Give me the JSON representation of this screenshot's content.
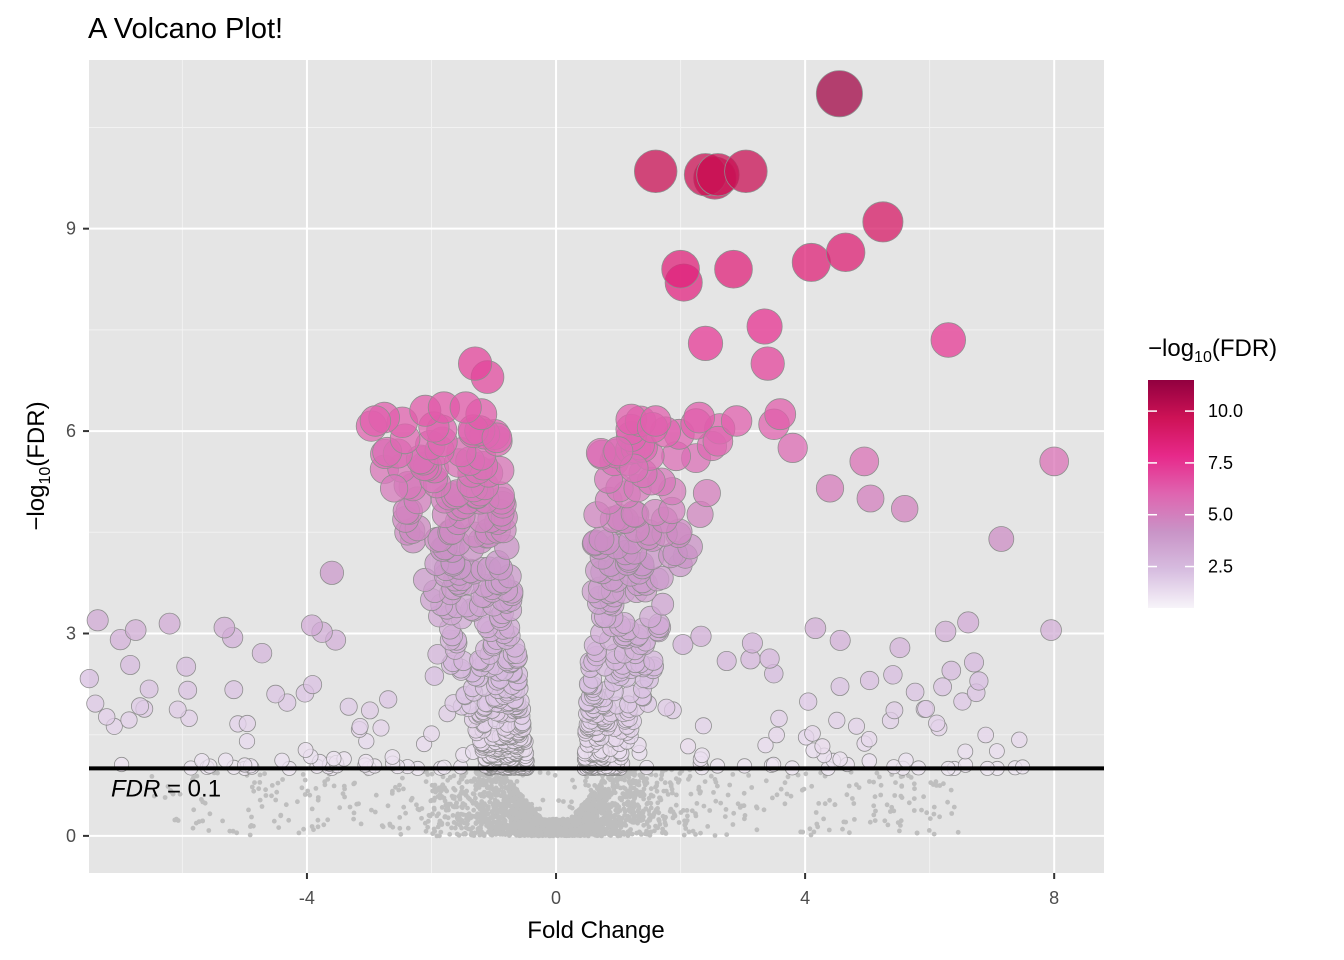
{
  "chart_data": {
    "type": "scatter",
    "title": "A Volcano Plot!",
    "xlabel": "Fold Change",
    "ylabel": {
      "prefix": "−log",
      "sub": "10",
      "suffix": "(FDR)"
    },
    "xlim": [
      -7.5,
      8.8
    ],
    "ylim": [
      -0.55,
      11.5
    ],
    "x_ticks": [
      -4,
      0,
      4,
      8
    ],
    "x_tick_labels": [
      "-4",
      "0",
      "4",
      "8"
    ],
    "y_ticks": [
      0,
      3,
      6,
      9
    ],
    "y_tick_labels": [
      "0",
      "3",
      "6",
      "9"
    ],
    "grid": true,
    "background": "#e5e5e5",
    "threshold": {
      "y": 1.0,
      "label_var": "FDR",
      "label_rest": " = 0.1"
    },
    "legend": {
      "position": "right",
      "title": {
        "prefix": "−log",
        "sub": "10",
        "suffix": "(FDR)"
      },
      "range": [
        0.5,
        11.5
      ],
      "ticks": [
        2.5,
        5.0,
        7.5,
        10.0
      ],
      "tick_labels": [
        "2.5",
        "5.0",
        "7.5",
        "10.0"
      ],
      "colors": [
        "#f7f4f9",
        "#d7bde0",
        "#c994c7",
        "#df65b0",
        "#e7298a",
        "#ce1256",
        "#91003f"
      ]
    },
    "highlighted_points": [
      {
        "x": 4.55,
        "y": 11.0
      },
      {
        "x": 1.6,
        "y": 9.85
      },
      {
        "x": 2.4,
        "y": 9.8
      },
      {
        "x": 2.55,
        "y": 9.75
      },
      {
        "x": 2.6,
        "y": 9.8
      },
      {
        "x": 3.05,
        "y": 9.85
      },
      {
        "x": 5.25,
        "y": 9.1
      },
      {
        "x": 4.65,
        "y": 8.65
      },
      {
        "x": 4.1,
        "y": 8.5
      },
      {
        "x": 2.0,
        "y": 8.4
      },
      {
        "x": 2.85,
        "y": 8.4
      },
      {
        "x": 2.05,
        "y": 8.2
      },
      {
        "x": 6.3,
        "y": 7.35
      },
      {
        "x": 3.35,
        "y": 7.55
      },
      {
        "x": 2.4,
        "y": 7.3
      },
      {
        "x": 3.4,
        "y": 7.0
      },
      {
        "x": -1.3,
        "y": 7.0
      },
      {
        "x": -1.1,
        "y": 6.8
      },
      {
        "x": 3.6,
        "y": 6.25
      },
      {
        "x": 3.5,
        "y": 6.1
      },
      {
        "x": 2.3,
        "y": 6.2
      },
      {
        "x": 2.9,
        "y": 6.15
      },
      {
        "x": 1.6,
        "y": 6.15
      },
      {
        "x": 1.55,
        "y": 6.05
      },
      {
        "x": -2.9,
        "y": 6.15
      },
      {
        "x": -2.1,
        "y": 6.3
      },
      {
        "x": -1.8,
        "y": 6.35
      },
      {
        "x": -1.45,
        "y": 6.35
      },
      {
        "x": -1.2,
        "y": 6.25
      },
      {
        "x": -0.95,
        "y": 5.9
      },
      {
        "x": 8.0,
        "y": 5.55
      },
      {
        "x": 4.95,
        "y": 5.55
      },
      {
        "x": 3.8,
        "y": 5.75
      },
      {
        "x": 1.0,
        "y": 5.7
      },
      {
        "x": 2.6,
        "y": 5.85
      },
      {
        "x": 1.25,
        "y": 5.45
      },
      {
        "x": 4.4,
        "y": 5.15
      },
      {
        "x": 5.05,
        "y": 5.0
      },
      {
        "x": 5.6,
        "y": 4.85
      },
      {
        "x": 7.15,
        "y": 4.4
      },
      {
        "x": -3.6,
        "y": 3.9
      },
      {
        "x": -6.75,
        "y": 3.05
      },
      {
        "x": 7.95,
        "y": 3.05
      },
      {
        "x": -2.6,
        "y": 5.15
      }
    ]
  }
}
